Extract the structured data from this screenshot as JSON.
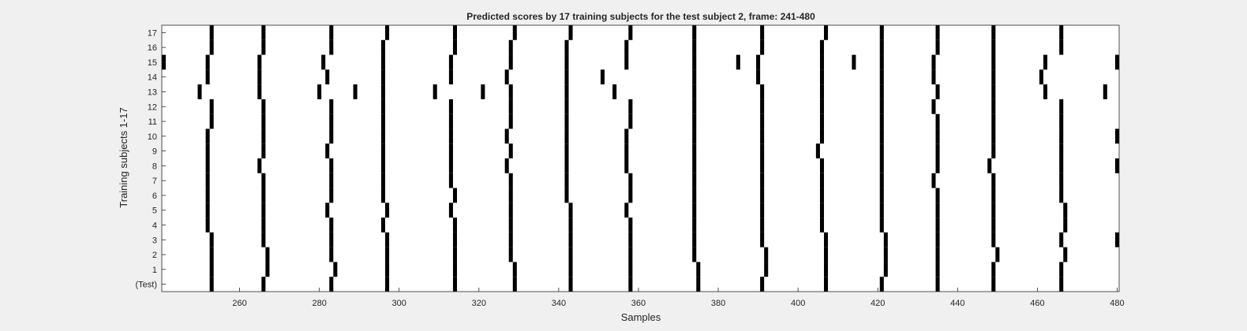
{
  "chart_data": {
    "type": "heatmap",
    "title": "Predicted scores by 17 training subjects for the test subject 2, frame: 241-480",
    "xlabel": "Samples",
    "ylabel": "Training subjects 1-17",
    "xlim": [
      241,
      480
    ],
    "xticks": [
      260,
      280,
      300,
      320,
      340,
      360,
      380,
      400,
      420,
      440,
      460,
      480
    ],
    "row_labels": [
      "(Test)",
      "1",
      "2",
      "3",
      "4",
      "5",
      "6",
      "7",
      "8",
      "9",
      "10",
      "11",
      "12",
      "13",
      "14",
      "15",
      "16",
      "17"
    ],
    "value_encoding": "black cell = predicted score 1, white = 0",
    "rows": [
      {
        "label": "(Test)",
        "ones": [
          253,
          266,
          283,
          297,
          314,
          329,
          343,
          358,
          375,
          391,
          407,
          421,
          435,
          449,
          466
        ]
      },
      {
        "label": "1",
        "ones": [
          253,
          267,
          284,
          297,
          314,
          329,
          343,
          358,
          375,
          392,
          407,
          422,
          435,
          449,
          466
        ]
      },
      {
        "label": "2",
        "ones": [
          253,
          267,
          283,
          297,
          314,
          328,
          343,
          358,
          374,
          392,
          407,
          422,
          435,
          450,
          467
        ]
      },
      {
        "label": "3",
        "ones": [
          253,
          266,
          283,
          297,
          314,
          328,
          343,
          358,
          374,
          391,
          407,
          422,
          435,
          449,
          466,
          480
        ]
      },
      {
        "label": "4",
        "ones": [
          252,
          266,
          283,
          296,
          314,
          328,
          343,
          358,
          374,
          391,
          406,
          421,
          435,
          449,
          467
        ]
      },
      {
        "label": "5",
        "ones": [
          252,
          266,
          282,
          297,
          313,
          328,
          343,
          357,
          374,
          391,
          406,
          421,
          435,
          449,
          467
        ]
      },
      {
        "label": "6",
        "ones": [
          252,
          266,
          283,
          296,
          314,
          328,
          342,
          358,
          374,
          391,
          406,
          421,
          435,
          449,
          466
        ]
      },
      {
        "label": "7",
        "ones": [
          252,
          266,
          283,
          296,
          313,
          328,
          342,
          358,
          374,
          391,
          406,
          421,
          434,
          449,
          466
        ]
      },
      {
        "label": "8",
        "ones": [
          252,
          265,
          283,
          296,
          313,
          327,
          342,
          357,
          374,
          391,
          406,
          421,
          435,
          448,
          466,
          480
        ]
      },
      {
        "label": "9",
        "ones": [
          252,
          266,
          282,
          296,
          313,
          328,
          342,
          357,
          374,
          391,
          405,
          421,
          435,
          449,
          466
        ]
      },
      {
        "label": "10",
        "ones": [
          252,
          266,
          283,
          296,
          313,
          327,
          342,
          357,
          374,
          391,
          406,
          421,
          435,
          449,
          466,
          480
        ]
      },
      {
        "label": "11",
        "ones": [
          253,
          266,
          283,
          296,
          313,
          328,
          342,
          358,
          374,
          391,
          406,
          421,
          435,
          449,
          466
        ]
      },
      {
        "label": "12",
        "ones": [
          253,
          266,
          283,
          296,
          313,
          328,
          342,
          358,
          374,
          391,
          406,
          421,
          434,
          449,
          466
        ]
      },
      {
        "label": "13",
        "ones": [
          250,
          265,
          280,
          289,
          296,
          309,
          321,
          328,
          342,
          354,
          374,
          391,
          406,
          421,
          435,
          449,
          462,
          477
        ]
      },
      {
        "label": "14",
        "ones": [
          252,
          265,
          282,
          296,
          313,
          327,
          342,
          351,
          374,
          390,
          406,
          421,
          434,
          449,
          461
        ]
      },
      {
        "label": "15",
        "ones": [
          241,
          252,
          265,
          281,
          296,
          313,
          328,
          342,
          357,
          374,
          385,
          390,
          406,
          414,
          421,
          434,
          449,
          462,
          480
        ]
      },
      {
        "label": "16",
        "ones": [
          253,
          266,
          283,
          296,
          314,
          328,
          342,
          357,
          374,
          391,
          406,
          421,
          435,
          449,
          466
        ]
      },
      {
        "label": "17",
        "ones": [
          253,
          266,
          283,
          297,
          314,
          329,
          343,
          358,
          374,
          391,
          407,
          421,
          435,
          449,
          466
        ]
      }
    ],
    "grid": false,
    "legend": "none"
  }
}
